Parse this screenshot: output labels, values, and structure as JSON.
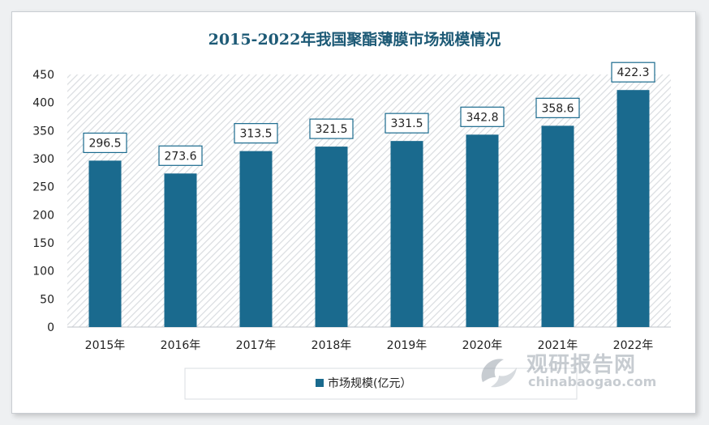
{
  "colors": {
    "bar": "#1a6a8e",
    "title": "#1d5a76",
    "label_border": "#1a6a8e",
    "axis_text": "#222222",
    "hatch": "#d9dce0"
  },
  "chart_data": {
    "type": "bar",
    "title": "2015-2022年我国聚酯薄膜市场规模情况",
    "xlabel": "",
    "ylabel": "",
    "categories": [
      "2015年",
      "2016年",
      "2017年",
      "2018年",
      "2019年",
      "2020年",
      "2021年",
      "2022年"
    ],
    "series": [
      {
        "name": "市场规模(亿元）",
        "values": [
          296.5,
          273.6,
          313.5,
          321.5,
          331.5,
          342.8,
          358.6,
          422.3
        ]
      }
    ],
    "data_labels": [
      "296.5",
      "273.6",
      "313.5",
      "321.5",
      "331.5",
      "342.8",
      "358.6",
      "422.3"
    ],
    "ylim": [
      0,
      450
    ],
    "yticks": [
      0,
      50,
      100,
      150,
      200,
      250,
      300,
      350,
      400,
      450
    ],
    "grid": false,
    "legend_position": "bottom"
  },
  "watermark": {
    "cn": "观研报告网",
    "en": "chinabaogao.com"
  }
}
